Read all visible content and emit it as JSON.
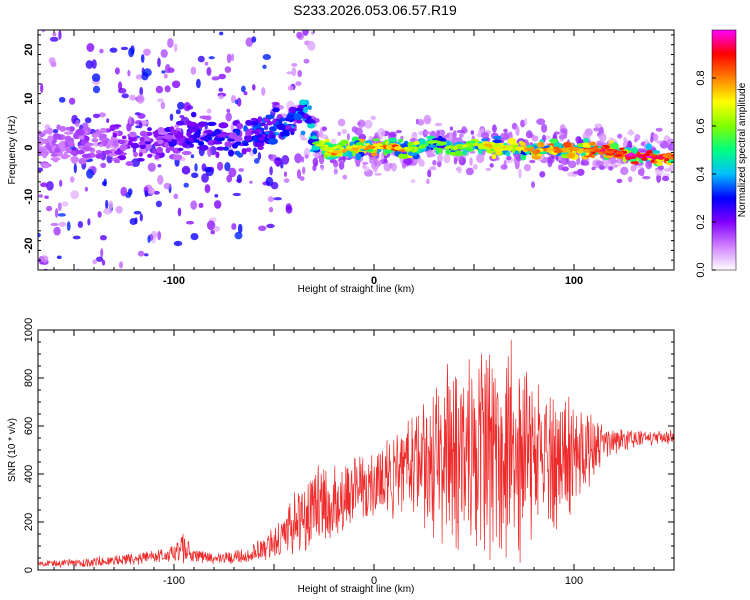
{
  "title": "S233.2026.053.06.57.R19",
  "chart_data": [
    {
      "type": "heatmap",
      "xlabel": "Height of straight line (km)",
      "ylabel": "Frequency (Hz)",
      "xlim": [
        -168,
        150
      ],
      "ylim": [
        -25,
        24
      ],
      "xticks": [
        -100,
        0,
        100
      ],
      "yticks": [
        -20,
        -10,
        0,
        10,
        20
      ],
      "colorbar": {
        "label": "Normalized spectral amplitude",
        "range": [
          0,
          1
        ],
        "ticks": [
          0.0,
          0.2,
          0.4,
          0.6,
          0.8
        ],
        "tick_labels": [
          "0.0",
          "0.2",
          "0.4",
          "0.6",
          "0.8"
        ],
        "colors": [
          "#ffffff",
          "#d080ff",
          "#8000ff",
          "#0000ff",
          "#00c0ff",
          "#00ff80",
          "#80ff00",
          "#ffff00",
          "#ff8000",
          "#ff0000",
          "#ff00ff"
        ]
      },
      "ridge": {
        "x": [
          -168,
          -150,
          -130,
          -110,
          -90,
          -70,
          -50,
          -40,
          -33,
          -30,
          -20,
          -10,
          0,
          10,
          20,
          30,
          40,
          50,
          60,
          70,
          80,
          90,
          100,
          110,
          120,
          130,
          140,
          150
        ],
        "y": [
          0.0,
          0.5,
          0.5,
          1.0,
          2.0,
          2.0,
          4.0,
          6.0,
          8.0,
          1.0,
          -1.0,
          0.0,
          0.0,
          0.0,
          -0.5,
          1.0,
          0.0,
          0.5,
          0.0,
          0.0,
          -0.5,
          -0.5,
          -0.5,
          -0.5,
          -1.0,
          -1.5,
          -2.0,
          -2.0
        ],
        "amplitude": [
          0.15,
          0.2,
          0.25,
          0.3,
          0.35,
          0.4,
          0.45,
          0.5,
          0.55,
          0.6,
          0.8,
          0.75,
          0.8,
          0.85,
          0.7,
          0.6,
          0.65,
          0.7,
          0.75,
          0.7,
          0.8,
          0.85,
          0.85,
          0.9,
          0.95,
          1.0,
          0.95,
          0.9
        ]
      }
    },
    {
      "type": "line",
      "xlabel": "Height of straight line (km)",
      "ylabel": "SNR (10 * v/v)",
      "xlim": [
        -168,
        150
      ],
      "ylim": [
        0,
        1000
      ],
      "xticks": [
        -100,
        0,
        100
      ],
      "yticks": [
        0,
        200,
        400,
        600,
        800,
        1000
      ],
      "color": "#ee2a2a",
      "envelope": {
        "x": [
          -168,
          -150,
          -130,
          -110,
          -100,
          -95,
          -90,
          -80,
          -70,
          -60,
          -50,
          -40,
          -30,
          -20,
          -10,
          0,
          10,
          20,
          30,
          40,
          50,
          60,
          70,
          80,
          90,
          100,
          110,
          120,
          130,
          140,
          150
        ],
        "mean": [
          25,
          30,
          40,
          55,
          70,
          90,
          60,
          45,
          55,
          70,
          110,
          200,
          260,
          280,
          320,
          360,
          400,
          430,
          460,
          490,
          520,
          500,
          480,
          470,
          450,
          470,
          510,
          540,
          550,
          550,
          555
        ],
        "spread": [
          10,
          15,
          20,
          25,
          35,
          60,
          30,
          20,
          25,
          35,
          60,
          120,
          150,
          150,
          130,
          140,
          150,
          200,
          260,
          360,
          420,
          440,
          380,
          300,
          260,
          200,
          120,
          50,
          30,
          25,
          25
        ]
      }
    }
  ]
}
